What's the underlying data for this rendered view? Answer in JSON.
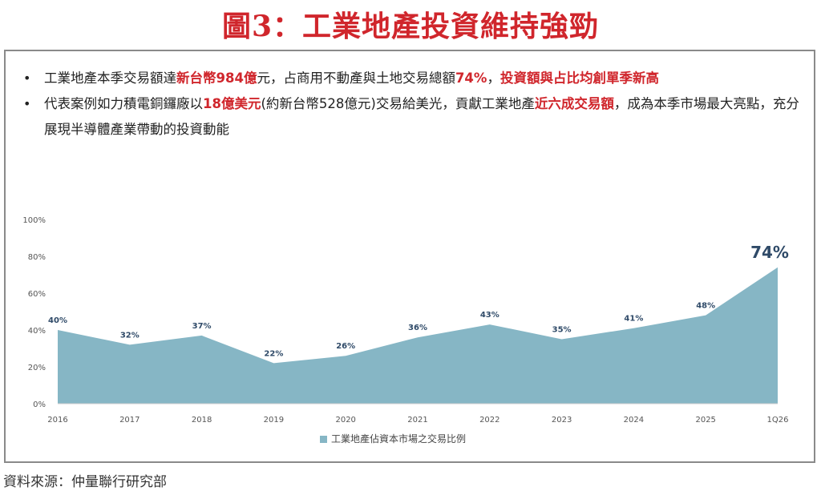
{
  "title": "圖3：工業地產投資維持強勁",
  "bullets": [
    {
      "segments": [
        {
          "text": "工業地產本季交易額達",
          "highlight": false
        },
        {
          "text": "新台幣984億",
          "highlight": true
        },
        {
          "text": "元，占商用不動產與土地交易總額",
          "highlight": false
        },
        {
          "text": "74%",
          "highlight": true
        },
        {
          "text": "，",
          "highlight": false
        },
        {
          "text": "投資額與占比均創單季新高",
          "highlight": true
        }
      ]
    },
    {
      "segments": [
        {
          "text": "代表案例如力積電銅鑼廠以",
          "highlight": false
        },
        {
          "text": "18億美元",
          "highlight": true
        },
        {
          "text": "(約新台幣528億元)交易給美光，貢獻工業地產",
          "highlight": false
        },
        {
          "text": "近六成交易額",
          "highlight": true
        },
        {
          "text": "，成為本季市場最大亮點，充分展現半導體產業帶動的投資動能",
          "highlight": false
        }
      ]
    }
  ],
  "chart_data": {
    "type": "area",
    "categories": [
      "2016",
      "2017",
      "2018",
      "2019",
      "2020",
      "2021",
      "2022",
      "2023",
      "2024",
      "2025",
      "1Q26"
    ],
    "series": [
      {
        "name": "工業地產佔資本市場之交易比例",
        "values": [
          40,
          32,
          37,
          22,
          26,
          36,
          43,
          35,
          41,
          48,
          74
        ],
        "labels": [
          "40%",
          "32%",
          "37%",
          "22%",
          "26%",
          "36%",
          "43%",
          "35%",
          "41%",
          "48%",
          "74%"
        ]
      }
    ],
    "ylim": [
      0,
      100
    ],
    "yticks": [
      0,
      20,
      40,
      60,
      80,
      100
    ],
    "ytick_labels": [
      "0%",
      "20%",
      "40%",
      "60%",
      "80%",
      "100%"
    ],
    "grid": false,
    "legend_position": "bottom-center",
    "highlight_last_label": true
  },
  "colors": {
    "title": "#d0262c",
    "highlight_text": "#d0262c",
    "area_fill": "#86b6c5",
    "data_label": "#2f4a68",
    "axis_text": "#555555",
    "frame": "#8a8a8a"
  },
  "source": "資料來源：仲量聯行研究部"
}
